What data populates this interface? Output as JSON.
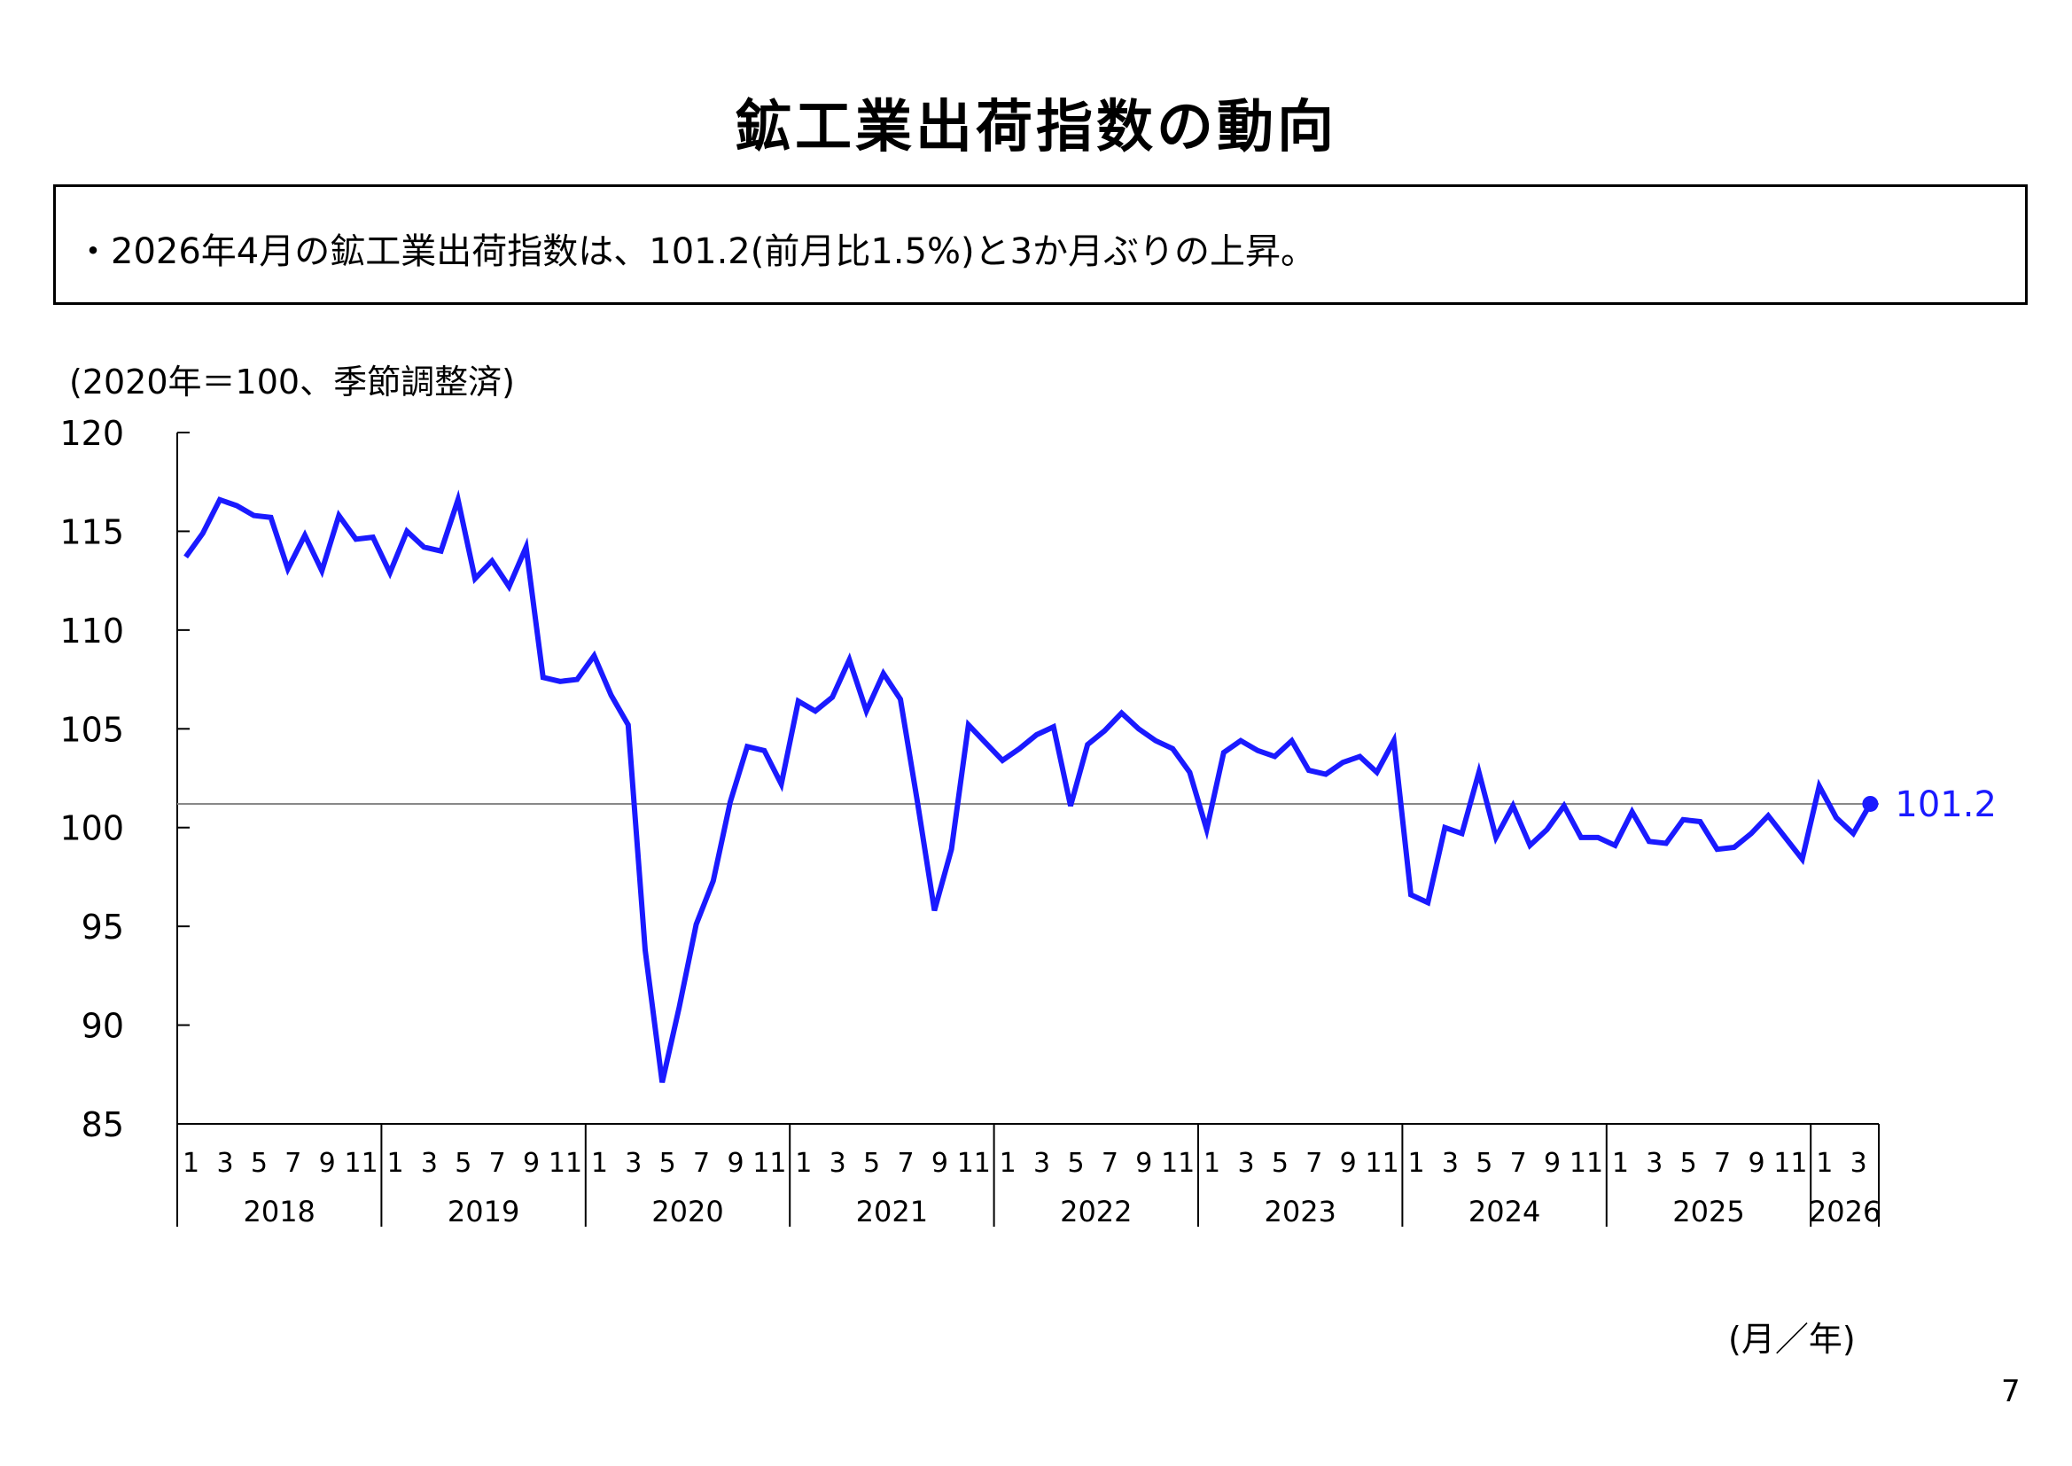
{
  "title": "鉱工業出荷指数の動向",
  "summary": "・2026年4月の鉱工業出荷指数は、101.2(前月比1.5%)と3か月ぶりの上昇。",
  "unit_note": "(2020年＝100、季節調整済)",
  "x_unit": "(月／年)",
  "page_number": "7",
  "chart_data": {
    "type": "line",
    "title": "",
    "xlabel": "(月／年)",
    "ylabel": "(2020年＝100、季節調整済)",
    "ylim": [
      85,
      120
    ],
    "yticks": [
      "85",
      "90",
      "95",
      "100",
      "105",
      "110",
      "115",
      "120"
    ],
    "month_ticks": [
      "1",
      "3",
      "5",
      "7",
      "9",
      "11"
    ],
    "month_ticks_2026": [
      "1",
      "3"
    ],
    "years": [
      "2018",
      "2019",
      "2020",
      "2021",
      "2022",
      "2023",
      "2024",
      "2025",
      "2026"
    ],
    "start": "2018-01",
    "end": "2026-04",
    "series": [
      {
        "name": "",
        "color": "#1a1aff",
        "values": [
          113.7,
          114.9,
          116.6,
          116.3,
          115.8,
          115.7,
          113.1,
          114.8,
          113.0,
          115.8,
          114.6,
          114.7,
          112.9,
          115.0,
          114.2,
          114.0,
          116.6,
          112.6,
          113.5,
          112.2,
          114.2,
          107.6,
          107.4,
          107.5,
          108.7,
          106.7,
          105.2,
          93.8,
          87.1,
          90.9,
          95.1,
          97.3,
          101.3,
          104.1,
          103.9,
          102.2,
          106.4,
          105.9,
          106.6,
          108.5,
          105.9,
          107.8,
          106.5,
          101.3,
          95.8,
          98.9,
          105.2,
          104.3,
          103.4,
          104.0,
          104.7,
          105.1,
          101.1,
          104.2,
          104.9,
          105.8,
          105.0,
          104.4,
          104.0,
          102.8,
          99.9,
          103.8,
          104.4,
          103.9,
          103.6,
          104.4,
          102.9,
          102.7,
          103.3,
          103.6,
          102.8,
          104.4,
          96.6,
          96.2,
          100.0,
          99.7,
          102.8,
          99.5,
          101.1,
          99.1,
          99.9,
          101.1,
          99.5,
          99.5,
          99.1,
          100.8,
          99.3,
          99.2,
          100.4,
          100.3,
          98.9,
          99.0,
          99.7,
          100.6,
          99.5,
          98.4,
          102.1,
          100.5,
          99.7,
          101.2
        ]
      }
    ],
    "reference_line": 101.2,
    "last_label": "101.2",
    "grid": false,
    "legend": "none"
  }
}
